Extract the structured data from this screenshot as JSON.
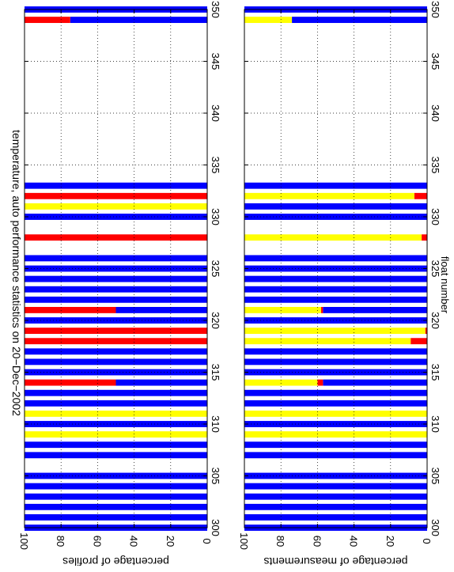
{
  "title": "temperature, auto performance statistics on 20−Dec−2002",
  "xlabel": "float number",
  "colors": {
    "blue": "#0000ff",
    "red": "#ff0000",
    "yellow": "#ffff00"
  },
  "chart_data": [
    {
      "type": "bar",
      "orientation": "horizontal-stacked",
      "ylabel": "percentage of profiles",
      "xlim": [
        300,
        350
      ],
      "ylim": [
        0,
        100
      ],
      "xticks": [
        "300",
        "305",
        "310",
        "315",
        "320",
        "325",
        "330",
        "335",
        "340",
        "345",
        "350"
      ],
      "yticks": [
        "0",
        "20",
        "40",
        "60",
        "80",
        "100"
      ],
      "grid": true,
      "bars": [
        {
          "x": 300,
          "blue": 100,
          "red": 0,
          "yellow": 0
        },
        {
          "x": 301,
          "blue": 100,
          "red": 0,
          "yellow": 0
        },
        {
          "x": 302,
          "blue": 100,
          "red": 0,
          "yellow": 0
        },
        {
          "x": 303,
          "blue": 100,
          "red": 0,
          "yellow": 0
        },
        {
          "x": 304,
          "blue": 100,
          "red": 0,
          "yellow": 0
        },
        {
          "x": 305,
          "blue": 100,
          "red": 0,
          "yellow": 0
        },
        {
          "x": 307,
          "blue": 100,
          "red": 0,
          "yellow": 0
        },
        {
          "x": 308,
          "blue": 100,
          "red": 0,
          "yellow": 0
        },
        {
          "x": 309,
          "blue": 0,
          "red": 0,
          "yellow": 100
        },
        {
          "x": 310,
          "blue": 100,
          "red": 0,
          "yellow": 0
        },
        {
          "x": 311,
          "blue": 0,
          "red": 0,
          "yellow": 100
        },
        {
          "x": 312,
          "blue": 100,
          "red": 0,
          "yellow": 0
        },
        {
          "x": 313,
          "blue": 100,
          "red": 0,
          "yellow": 0
        },
        {
          "x": 314,
          "blue": 50,
          "red": 50,
          "yellow": 0
        },
        {
          "x": 315,
          "blue": 100,
          "red": 0,
          "yellow": 0
        },
        {
          "x": 316,
          "blue": 100,
          "red": 0,
          "yellow": 0
        },
        {
          "x": 317,
          "blue": 100,
          "red": 0,
          "yellow": 0
        },
        {
          "x": 318,
          "blue": 0,
          "red": 100,
          "yellow": 0
        },
        {
          "x": 319,
          "blue": 0,
          "red": 100,
          "yellow": 0
        },
        {
          "x": 320,
          "blue": 100,
          "red": 0,
          "yellow": 0
        },
        {
          "x": 321,
          "blue": 50,
          "red": 50,
          "yellow": 0
        },
        {
          "x": 322,
          "blue": 100,
          "red": 0,
          "yellow": 0
        },
        {
          "x": 323,
          "blue": 100,
          "red": 0,
          "yellow": 0
        },
        {
          "x": 324,
          "blue": 100,
          "red": 0,
          "yellow": 0
        },
        {
          "x": 325,
          "blue": 100,
          "red": 0,
          "yellow": 0
        },
        {
          "x": 326,
          "blue": 100,
          "red": 0,
          "yellow": 0
        },
        {
          "x": 328,
          "blue": 0,
          "red": 100,
          "yellow": 0
        },
        {
          "x": 330,
          "blue": 100,
          "red": 0,
          "yellow": 0
        },
        {
          "x": 331,
          "blue": 0,
          "red": 0,
          "yellow": 100
        },
        {
          "x": 332,
          "blue": 0,
          "red": 100,
          "yellow": 0
        },
        {
          "x": 333,
          "blue": 100,
          "red": 0,
          "yellow": 0
        },
        {
          "x": 349,
          "blue": 75,
          "red": 25,
          "yellow": 0
        },
        {
          "x": 350,
          "blue": 100,
          "red": 0,
          "yellow": 0
        }
      ]
    },
    {
      "type": "bar",
      "orientation": "horizontal-stacked",
      "ylabel": "percentage of measurements",
      "xlim": [
        300,
        350
      ],
      "ylim": [
        0,
        100
      ],
      "xticks": [
        "300",
        "305",
        "310",
        "315",
        "320",
        "325",
        "330",
        "335",
        "340",
        "345",
        "350"
      ],
      "yticks": [
        "0",
        "20",
        "40",
        "60",
        "80",
        "100"
      ],
      "grid": true,
      "bars": [
        {
          "x": 300,
          "blue": 100,
          "red": 0,
          "yellow": 0
        },
        {
          "x": 301,
          "blue": 100,
          "red": 0,
          "yellow": 0
        },
        {
          "x": 302,
          "blue": 100,
          "red": 0,
          "yellow": 0
        },
        {
          "x": 303,
          "blue": 100,
          "red": 0,
          "yellow": 0
        },
        {
          "x": 304,
          "blue": 100,
          "red": 0,
          "yellow": 0
        },
        {
          "x": 305,
          "blue": 100,
          "red": 0,
          "yellow": 0
        },
        {
          "x": 307,
          "blue": 100,
          "red": 0,
          "yellow": 0
        },
        {
          "x": 308,
          "blue": 100,
          "red": 0,
          "yellow": 0
        },
        {
          "x": 309,
          "blue": 0,
          "red": 0,
          "yellow": 100
        },
        {
          "x": 310,
          "blue": 100,
          "red": 0,
          "yellow": 0
        },
        {
          "x": 311,
          "blue": 0,
          "red": 0,
          "yellow": 100
        },
        {
          "x": 312,
          "blue": 100,
          "red": 0,
          "yellow": 0
        },
        {
          "x": 313,
          "blue": 100,
          "red": 0,
          "yellow": 0
        },
        {
          "x": 314,
          "blue": 57,
          "red": 3,
          "yellow": 40
        },
        {
          "x": 315,
          "blue": 100,
          "red": 0,
          "yellow": 0
        },
        {
          "x": 316,
          "blue": 100,
          "red": 0,
          "yellow": 0
        },
        {
          "x": 317,
          "blue": 100,
          "red": 0,
          "yellow": 0
        },
        {
          "x": 318,
          "blue": 0,
          "red": 9,
          "yellow": 91
        },
        {
          "x": 319,
          "blue": 0,
          "red": 1,
          "yellow": 99
        },
        {
          "x": 320,
          "blue": 100,
          "red": 0,
          "yellow": 0
        },
        {
          "x": 321,
          "blue": 57,
          "red": 1,
          "yellow": 42
        },
        {
          "x": 322,
          "blue": 100,
          "red": 0,
          "yellow": 0
        },
        {
          "x": 323,
          "blue": 100,
          "red": 0,
          "yellow": 0
        },
        {
          "x": 324,
          "blue": 100,
          "red": 0,
          "yellow": 0
        },
        {
          "x": 325,
          "blue": 100,
          "red": 0,
          "yellow": 0
        },
        {
          "x": 326,
          "blue": 100,
          "red": 0,
          "yellow": 0
        },
        {
          "x": 328,
          "blue": 0,
          "red": 3,
          "yellow": 97
        },
        {
          "x": 330,
          "blue": 100,
          "red": 0,
          "yellow": 0
        },
        {
          "x": 331,
          "blue": 100,
          "red": 0,
          "yellow": 0
        },
        {
          "x": 332,
          "blue": 0,
          "red": 7,
          "yellow": 93
        },
        {
          "x": 333,
          "blue": 100,
          "red": 0,
          "yellow": 0
        },
        {
          "x": 349,
          "blue": 74,
          "red": 0,
          "yellow": 26
        },
        {
          "x": 350,
          "blue": 100,
          "red": 0,
          "yellow": 0
        }
      ]
    }
  ]
}
